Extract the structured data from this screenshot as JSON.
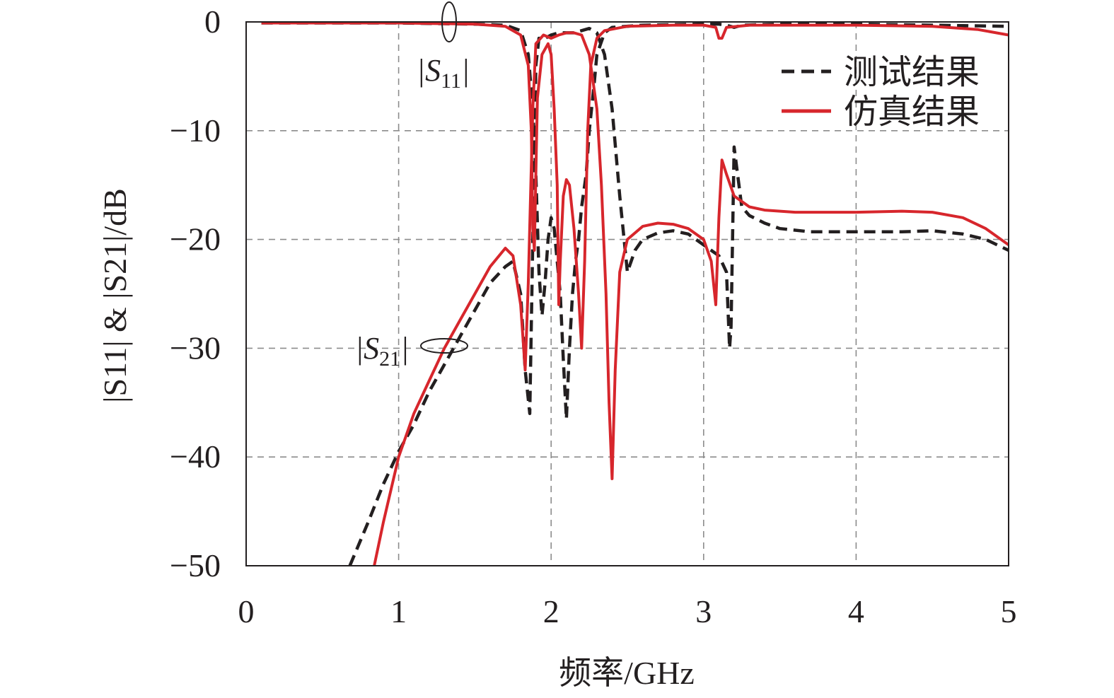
{
  "chart_data": {
    "type": "line",
    "xlabel": "频率/GHz",
    "ylabel": "|S11| & |S21|/dB",
    "xlim": [
      0,
      5
    ],
    "ylim": [
      -50,
      0
    ],
    "xticks": [
      "0",
      "1",
      "2",
      "3",
      "4",
      "5"
    ],
    "yticks": [
      "0",
      "−10",
      "−20",
      "−30",
      "−40",
      "−50"
    ],
    "grid": true,
    "legend_position": "top-right",
    "annotations": [
      {
        "text": "|S",
        "subscript": "11",
        "close": "|"
      },
      {
        "text": "|S",
        "subscript": "21",
        "close": "|"
      }
    ],
    "series": [
      {
        "name": "测试结果",
        "color": "#231f20",
        "style": "dashed",
        "curves": [
          {
            "label": "S11 measured",
            "points": [
              [
                0.1,
                -0.1
              ],
              [
                0.5,
                -0.1
              ],
              [
                1.0,
                -0.1
              ],
              [
                1.5,
                -0.2
              ],
              [
                1.7,
                -0.3
              ],
              [
                1.8,
                -0.8
              ],
              [
                1.85,
                -3
              ],
              [
                1.88,
                -8
              ],
              [
                1.9,
                -14
              ],
              [
                1.92,
                -23
              ],
              [
                1.94,
                -27
              ],
              [
                1.96,
                -24
              ],
              [
                1.98,
                -20
              ],
              [
                2.0,
                -18
              ],
              [
                2.02,
                -19
              ],
              [
                2.04,
                -22
              ],
              [
                2.06,
                -25
              ],
              [
                2.08,
                -31
              ],
              [
                2.1,
                -36.5
              ],
              [
                2.12,
                -30
              ],
              [
                2.14,
                -25
              ],
              [
                2.16,
                -22
              ],
              [
                2.18,
                -20
              ],
              [
                2.2,
                -17
              ],
              [
                2.23,
                -14
              ],
              [
                2.25,
                -10
              ],
              [
                2.28,
                -6
              ],
              [
                2.3,
                -3
              ],
              [
                2.35,
                -1
              ],
              [
                2.4,
                -0.5
              ],
              [
                2.6,
                -0.3
              ],
              [
                3.0,
                -0.2
              ],
              [
                3.1,
                -0.2
              ],
              [
                3.15,
                -0.3
              ],
              [
                3.2,
                -0.5
              ],
              [
                3.25,
                -0.3
              ],
              [
                3.5,
                -0.2
              ],
              [
                4.0,
                -0.2
              ],
              [
                4.5,
                -0.3
              ],
              [
                5.0,
                -0.4
              ]
            ]
          },
          {
            "label": "S21 measured",
            "points": [
              [
                0.68,
                -50
              ],
              [
                0.8,
                -46
              ],
              [
                0.9,
                -42.5
              ],
              [
                1.0,
                -39.5
              ],
              [
                1.1,
                -37
              ],
              [
                1.2,
                -34
              ],
              [
                1.3,
                -31.5
              ],
              [
                1.4,
                -29
              ],
              [
                1.5,
                -26.5
              ],
              [
                1.6,
                -24
              ],
              [
                1.7,
                -22.5
              ],
              [
                1.75,
                -22
              ],
              [
                1.8,
                -25
              ],
              [
                1.83,
                -32
              ],
              [
                1.86,
                -36
              ],
              [
                1.88,
                -20
              ],
              [
                1.9,
                -4
              ],
              [
                1.92,
                -1.5
              ],
              [
                1.96,
                -1.5
              ],
              [
                2.0,
                -1.2
              ],
              [
                2.05,
                -1
              ],
              [
                2.1,
                -1
              ],
              [
                2.15,
                -1
              ],
              [
                2.2,
                -0.8
              ],
              [
                2.25,
                -0.6
              ],
              [
                2.3,
                -1
              ],
              [
                2.35,
                -3
              ],
              [
                2.4,
                -8
              ],
              [
                2.45,
                -16
              ],
              [
                2.5,
                -23
              ],
              [
                2.55,
                -21
              ],
              [
                2.6,
                -20
              ],
              [
                2.7,
                -19.4
              ],
              [
                2.8,
                -19.2
              ],
              [
                2.9,
                -19.5
              ],
              [
                3.0,
                -20.5
              ],
              [
                3.05,
                -21
              ],
              [
                3.1,
                -21.5
              ],
              [
                3.15,
                -23
              ],
              [
                3.17,
                -30
              ],
              [
                3.18,
                -28
              ],
              [
                3.2,
                -11.5
              ],
              [
                3.25,
                -17
              ],
              [
                3.3,
                -17.8
              ],
              [
                3.4,
                -18.5
              ],
              [
                3.5,
                -19
              ],
              [
                3.7,
                -19.3
              ],
              [
                4.0,
                -19.3
              ],
              [
                4.3,
                -19.3
              ],
              [
                4.5,
                -19.2
              ],
              [
                4.7,
                -19.5
              ],
              [
                4.85,
                -20
              ],
              [
                5.0,
                -21
              ]
            ]
          }
        ]
      },
      {
        "name": "仿真结果",
        "color": "#d7262c",
        "style": "solid",
        "curves": [
          {
            "label": "S11 simulated",
            "points": [
              [
                0.1,
                -0.1
              ],
              [
                0.5,
                -0.1
              ],
              [
                1.0,
                -0.1
              ],
              [
                1.5,
                -0.2
              ],
              [
                1.7,
                -0.4
              ],
              [
                1.8,
                -1.2
              ],
              [
                1.85,
                -4
              ],
              [
                1.87,
                -10
              ],
              [
                1.88,
                -19
              ],
              [
                1.89,
                -21
              ],
              [
                1.9,
                -14
              ],
              [
                1.91,
                -7
              ],
              [
                1.94,
                -3
              ],
              [
                1.98,
                -2
              ],
              [
                2.0,
                -3
              ],
              [
                2.02,
                -8
              ],
              [
                2.04,
                -15
              ],
              [
                2.05,
                -26
              ],
              [
                2.06,
                -22
              ],
              [
                2.08,
                -16
              ],
              [
                2.1,
                -14.5
              ],
              [
                2.12,
                -15
              ],
              [
                2.15,
                -19
              ],
              [
                2.18,
                -25
              ],
              [
                2.2,
                -30
              ],
              [
                2.22,
                -22
              ],
              [
                2.24,
                -10
              ],
              [
                2.26,
                -4
              ],
              [
                2.3,
                -1.5
              ],
              [
                2.35,
                -0.8
              ],
              [
                2.5,
                -0.4
              ],
              [
                2.8,
                -0.3
              ],
              [
                3.0,
                -0.3
              ],
              [
                3.08,
                -0.5
              ],
              [
                3.1,
                -1.5
              ],
              [
                3.12,
                -1.5
              ],
              [
                3.15,
                -0.5
              ],
              [
                3.3,
                -0.3
              ],
              [
                3.6,
                -0.3
              ],
              [
                4.0,
                -0.3
              ],
              [
                4.5,
                -0.4
              ],
              [
                4.8,
                -0.7
              ],
              [
                5.0,
                -1.2
              ]
            ]
          },
          {
            "label": "S21 simulated",
            "points": [
              [
                0.84,
                -50
              ],
              [
                0.9,
                -46
              ],
              [
                1.0,
                -40
              ],
              [
                1.1,
                -36
              ],
              [
                1.2,
                -33
              ],
              [
                1.3,
                -30
              ],
              [
                1.4,
                -27.5
              ],
              [
                1.5,
                -25
              ],
              [
                1.6,
                -22.5
              ],
              [
                1.7,
                -20.8
              ],
              [
                1.75,
                -21.5
              ],
              [
                1.8,
                -26
              ],
              [
                1.83,
                -32
              ],
              [
                1.85,
                -24
              ],
              [
                1.88,
                -8
              ],
              [
                1.9,
                -2
              ],
              [
                1.95,
                -1.2
              ],
              [
                2.0,
                -1.5
              ],
              [
                2.05,
                -1.2
              ],
              [
                2.1,
                -1
              ],
              [
                2.15,
                -1
              ],
              [
                2.2,
                -1.2
              ],
              [
                2.25,
                -3
              ],
              [
                2.3,
                -8
              ],
              [
                2.33,
                -15
              ],
              [
                2.36,
                -25
              ],
              [
                2.38,
                -35
              ],
              [
                2.4,
                -42
              ],
              [
                2.42,
                -32
              ],
              [
                2.45,
                -23
              ],
              [
                2.5,
                -20
              ],
              [
                2.6,
                -18.8
              ],
              [
                2.7,
                -18.5
              ],
              [
                2.8,
                -18.6
              ],
              [
                2.9,
                -19
              ],
              [
                3.0,
                -20
              ],
              [
                3.05,
                -22
              ],
              [
                3.08,
                -26
              ],
              [
                3.1,
                -18
              ],
              [
                3.12,
                -12.7
              ],
              [
                3.15,
                -14
              ],
              [
                3.2,
                -16
              ],
              [
                3.3,
                -17
              ],
              [
                3.4,
                -17.3
              ],
              [
                3.6,
                -17.5
              ],
              [
                3.8,
                -17.5
              ],
              [
                4.0,
                -17.5
              ],
              [
                4.3,
                -17.4
              ],
              [
                4.5,
                -17.5
              ],
              [
                4.7,
                -18
              ],
              [
                4.85,
                -19
              ],
              [
                5.0,
                -20.5
              ]
            ]
          }
        ]
      }
    ]
  }
}
